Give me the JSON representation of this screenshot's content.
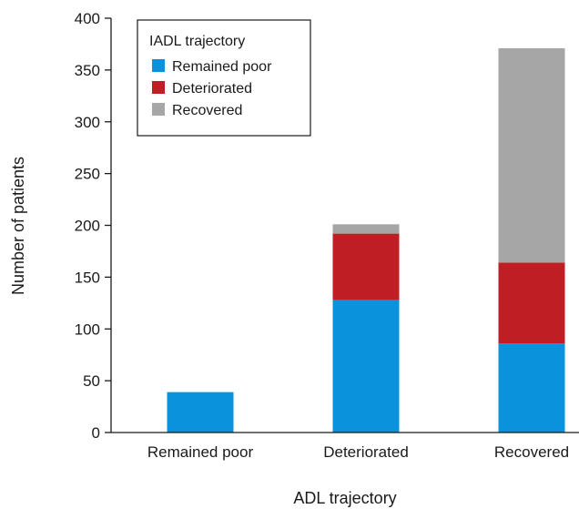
{
  "chart_data": {
    "type": "bar",
    "stacked": true,
    "categories": [
      "Remained poor",
      "Deteriorated",
      "Recovered"
    ],
    "series": [
      {
        "name": "Remained poor",
        "color": "#0a93dc",
        "values": [
          39,
          128,
          86
        ]
      },
      {
        "name": "Deteriorated",
        "color": "#be1e24",
        "values": [
          0,
          64,
          78
        ]
      },
      {
        "name": "Recovered",
        "color": "#a6a6a6",
        "values": [
          0,
          9,
          207
        ]
      }
    ],
    "xlabel": "ADL trajectory",
    "ylabel": "Number of patients",
    "ylim": [
      0,
      400
    ],
    "yticks": [
      0,
      50,
      100,
      150,
      200,
      250,
      300,
      350,
      400
    ],
    "legend": {
      "title": "IADL trajectory",
      "position": "top-left"
    },
    "grid": false
  }
}
